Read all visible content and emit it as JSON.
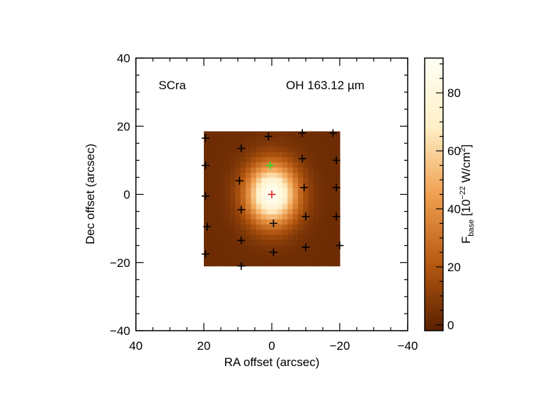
{
  "chart_data": {
    "type": "heatmap",
    "source_label": "SCra",
    "line_label": "OH 163.12 µm",
    "xlabel": "RA offset (arcsec)",
    "ylabel": "Dec offset (arcsec)",
    "xlim": [
      40,
      -40
    ],
    "ylim": [
      -40,
      40
    ],
    "x_ticks": [
      40,
      20,
      0,
      -20,
      -40
    ],
    "y_ticks": [
      40,
      20,
      0,
      -20,
      -40
    ],
    "tick_labels": {
      "x": [
        "40",
        "20",
        "0",
        "−20",
        "−40"
      ],
      "y": [
        "40",
        "20",
        "0",
        "−20",
        "−40"
      ]
    },
    "map_extent": {
      "x": [
        20,
        -20
      ],
      "y": [
        -21,
        18.5
      ]
    },
    "peak": {
      "x": 0,
      "y": 0,
      "value": 92
    },
    "colorbar": {
      "label_main": "F",
      "label_sub": "base",
      "label_units_pre": " [10",
      "label_exp": "−22",
      "label_units_post": " W/cm",
      "label_sq": "2",
      "label_close": "]",
      "range": [
        -2,
        92
      ],
      "ticks": [
        0,
        20,
        40,
        60,
        80
      ],
      "tick_labels": [
        "0",
        "20",
        "40",
        "60",
        "80"
      ],
      "colors": [
        "#5a2000",
        "#b85a12",
        "#f0a050",
        "#fff0c8",
        "#fffff4"
      ]
    },
    "spaxels": [
      {
        "x": 19.5,
        "y": 16.5
      },
      {
        "x": 9,
        "y": 13.5
      },
      {
        "x": 1,
        "y": 17
      },
      {
        "x": -9,
        "y": 18
      },
      {
        "x": -18,
        "y": 18
      },
      {
        "x": 19.5,
        "y": 8.5
      },
      {
        "x": 9.5,
        "y": 4
      },
      {
        "x": -9,
        "y": 10.5
      },
      {
        "x": -19,
        "y": 10
      },
      {
        "x": 19.5,
        "y": -0.5
      },
      {
        "x": -9.5,
        "y": 2
      },
      {
        "x": -19,
        "y": 2
      },
      {
        "x": 19,
        "y": -9.5
      },
      {
        "x": 9,
        "y": -4.5
      },
      {
        "x": -0.5,
        "y": -8.5
      },
      {
        "x": -10,
        "y": -6.5
      },
      {
        "x": -19,
        "y": -6.5
      },
      {
        "x": 19.5,
        "y": -17.5
      },
      {
        "x": 9,
        "y": -13.5
      },
      {
        "x": -0.5,
        "y": -17
      },
      {
        "x": -10,
        "y": -15.5
      },
      {
        "x": -20,
        "y": -15
      },
      {
        "x": 9,
        "y": -21
      }
    ],
    "center_spaxel": {
      "x": 0,
      "y": 0,
      "color": "#e02020"
    },
    "offset_spaxel": {
      "x": 0.5,
      "y": 8.5,
      "color": "#20e020"
    },
    "marker_color": "#000000"
  }
}
